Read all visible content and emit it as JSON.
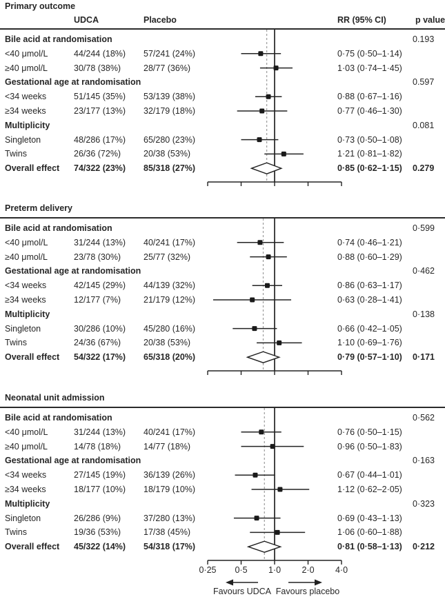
{
  "figure": {
    "headers": {
      "col_udca": "UDCA",
      "col_placebo": "Placebo",
      "col_rr": "RR (95% CI)",
      "col_p": "p value"
    }
  },
  "colors": {
    "text": "#262626",
    "line": "#222222",
    "dashed_line": "#9b9b9b",
    "marker_fill": "#1a1a1a",
    "diamond_fill": "#ffffff",
    "background": "#ffffff"
  },
  "chart_data": {
    "type": "forest",
    "x_axis": {
      "scale": "log",
      "ticks": [
        0.25,
        0.5,
        1.0,
        2.0,
        4.0
      ],
      "tick_labels": [
        "0·25",
        "0·5",
        "1·0",
        "2·0",
        "4·0"
      ],
      "null_line": 1.0
    },
    "footer": {
      "left_arrow_label": "Favours UDCA",
      "right_arrow_label": "Favours placebo"
    },
    "panels": [
      {
        "title": "Primary outcome",
        "show_column_headers": true,
        "show_axis_labels": false,
        "overall_rr": 0.85,
        "rows": [
          {
            "type": "section",
            "label": "Bile acid at randomisation",
            "p": "0.193"
          },
          {
            "type": "item",
            "label": "<40 μmol/L",
            "udca": "44/244 (18%)",
            "placebo": "57/241 (24%)",
            "rr_text": "0·75 (0·50–1·14)",
            "rr": 0.75,
            "lo": 0.5,
            "hi": 1.14
          },
          {
            "type": "item",
            "label": "≥40 μmol/L",
            "udca": "30/78 (38%)",
            "placebo": "28/77 (36%)",
            "rr_text": "1·03 (0·74–1·45)",
            "rr": 1.03,
            "lo": 0.74,
            "hi": 1.45
          },
          {
            "type": "section",
            "label": "Gestational age at randomisation",
            "p": "0.597"
          },
          {
            "type": "item",
            "label": "<34 weeks",
            "udca": "51/145 (35%)",
            "placebo": "53/139 (38%)",
            "rr_text": "0·88 (0·67–1·16)",
            "rr": 0.88,
            "lo": 0.67,
            "hi": 1.16
          },
          {
            "type": "item",
            "label": "≥34 weeks",
            "udca": "23/177 (13%)",
            "placebo": "32/179 (18%)",
            "rr_text": "0·77 (0·46–1·30)",
            "rr": 0.77,
            "lo": 0.46,
            "hi": 1.3
          },
          {
            "type": "section",
            "label": "Multiplicity",
            "p": "0.081"
          },
          {
            "type": "item",
            "label": "Singleton",
            "udca": "48/286 (17%)",
            "placebo": "65/280 (23%)",
            "rr_text": "0·73 (0·50–1·08)",
            "rr": 0.73,
            "lo": 0.5,
            "hi": 1.08
          },
          {
            "type": "item",
            "label": "Twins",
            "udca": "26/36 (72%)",
            "placebo": "20/38 (53%)",
            "rr_text": "1·21 (0·81–1·82)",
            "rr": 1.21,
            "lo": 0.81,
            "hi": 1.82
          },
          {
            "type": "overall",
            "label": "Overall effect",
            "udca": "74/322 (23%)",
            "placebo": "85/318 (27%)",
            "rr_text": "0·85 (0·62–1·15)",
            "p": "0.279",
            "rr": 0.85,
            "lo": 0.62,
            "hi": 1.15
          }
        ]
      },
      {
        "title": "Preterm delivery",
        "show_column_headers": false,
        "show_axis_labels": false,
        "overall_rr": 0.79,
        "rows": [
          {
            "type": "section",
            "label": "Bile acid at randomisation",
            "p": "0·599"
          },
          {
            "type": "item",
            "label": "<40 μmol/L",
            "udca": "31/244 (13%)",
            "placebo": "40/241 (17%)",
            "rr_text": "0·74 (0·46–1·21)",
            "rr": 0.74,
            "lo": 0.46,
            "hi": 1.21
          },
          {
            "type": "item",
            "label": "≥40 μmol/L",
            "udca": "23/78 (30%)",
            "placebo": "25/77 (32%)",
            "rr_text": "0·88 (0·60–1·29)",
            "rr": 0.88,
            "lo": 0.6,
            "hi": 1.29
          },
          {
            "type": "section",
            "label": "Gestational age at randomisation",
            "p": "0·462"
          },
          {
            "type": "item",
            "label": "<34 weeks",
            "udca": "42/145 (29%)",
            "placebo": "44/139 (32%)",
            "rr_text": "0·86 (0·63–1·17)",
            "rr": 0.86,
            "lo": 0.63,
            "hi": 1.17
          },
          {
            "type": "item",
            "label": "≥34 weeks",
            "udca": "12/177 (7%)",
            "placebo": "21/179 (12%)",
            "rr_text": "0·63 (0·28–1·41)",
            "rr": 0.63,
            "lo": 0.28,
            "hi": 1.41
          },
          {
            "type": "section",
            "label": "Multiplicity",
            "p": "0·138"
          },
          {
            "type": "item",
            "label": "Singleton",
            "udca": "30/286 (10%)",
            "placebo": "45/280 (16%)",
            "rr_text": "0·66 (0·42–1·05)",
            "rr": 0.66,
            "lo": 0.42,
            "hi": 1.05
          },
          {
            "type": "item",
            "label": "Twins",
            "udca": "24/36 (67%)",
            "placebo": "20/38 (53%)",
            "rr_text": "1·10 (0·69–1·76)",
            "rr": 1.1,
            "lo": 0.69,
            "hi": 1.76
          },
          {
            "type": "overall",
            "label": "Overall effect",
            "udca": "54/322 (17%)",
            "placebo": "65/318 (20%)",
            "rr_text": "0·79 (0·57–1·10)",
            "p": "0·171",
            "rr": 0.79,
            "lo": 0.57,
            "hi": 1.1
          }
        ]
      },
      {
        "title": "Neonatal unit admission",
        "show_column_headers": false,
        "show_axis_labels": true,
        "overall_rr": 0.81,
        "rows": [
          {
            "type": "section",
            "label": "Bile acid at randomisation",
            "p": "0·562"
          },
          {
            "type": "item",
            "label": "<40 μmol/L",
            "udca": "31/244 (13%)",
            "placebo": "40/241 (17%)",
            "rr_text": "0·76 (0·50–1·15)",
            "rr": 0.76,
            "lo": 0.5,
            "hi": 1.15
          },
          {
            "type": "item",
            "label": "≥40 μmol/L",
            "udca": "14/78 (18%)",
            "placebo": "14/77 (18%)",
            "rr_text": "0·96 (0·50–1·83)",
            "rr": 0.96,
            "lo": 0.5,
            "hi": 1.83
          },
          {
            "type": "section",
            "label": "Gestational age at randomisation",
            "p": "0·163"
          },
          {
            "type": "item",
            "label": "<34 weeks",
            "udca": "27/145 (19%)",
            "placebo": "36/139 (26%)",
            "rr_text": "0·67 (0·44–1·01)",
            "rr": 0.67,
            "lo": 0.44,
            "hi": 1.01
          },
          {
            "type": "item",
            "label": "≥34 weeks",
            "udca": "18/177 (10%)",
            "placebo": "18/179 (10%)",
            "rr_text": "1·12 (0·62–2·05)",
            "rr": 1.12,
            "lo": 0.62,
            "hi": 2.05
          },
          {
            "type": "section",
            "label": "Multiplicity",
            "p": "0·323"
          },
          {
            "type": "item",
            "label": "Singleton",
            "udca": "26/286 (9%)",
            "placebo": "37/280 (13%)",
            "rr_text": "0·69 (0·43–1·13)",
            "rr": 0.69,
            "lo": 0.43,
            "hi": 1.13
          },
          {
            "type": "item",
            "label": "Twins",
            "udca": "19/36 (53%)",
            "placebo": "17/38 (45%)",
            "rr_text": "1·06 (0·60–1·88)",
            "rr": 1.06,
            "lo": 0.6,
            "hi": 1.88
          },
          {
            "type": "overall",
            "label": "Overall effect",
            "udca": "45/322 (14%)",
            "placebo": "54/318 (17%)",
            "rr_text": "0·81 (0·58–1·13)",
            "p": "0·212",
            "rr": 0.81,
            "lo": 0.58,
            "hi": 1.13
          }
        ]
      }
    ]
  }
}
